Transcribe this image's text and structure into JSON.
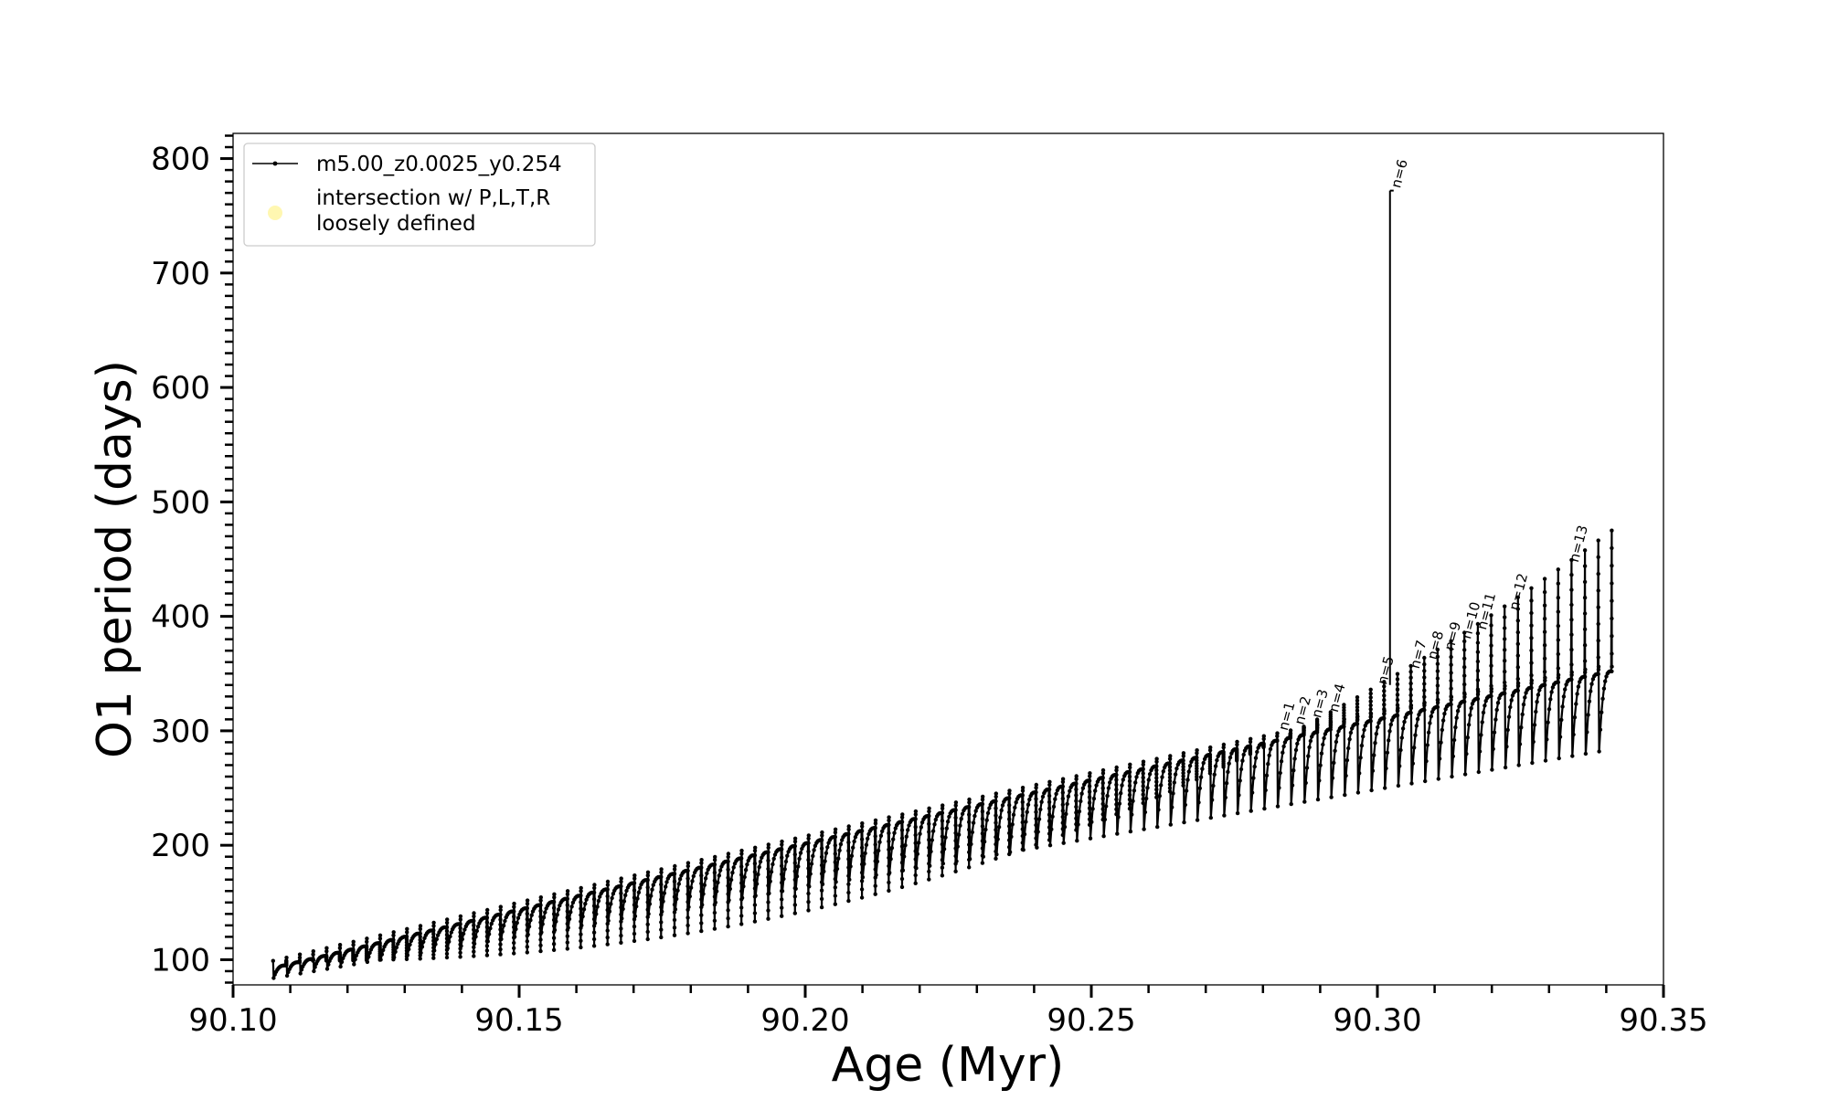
{
  "chart_data": {
    "type": "line",
    "title": "",
    "xlabel": "Age (Myr)",
    "ylabel": "O1 period (days)",
    "xlim": [
      90.1,
      90.35
    ],
    "ylim": [
      78,
      822
    ],
    "x_ticks": [
      90.1,
      90.15,
      90.2,
      90.25,
      90.3,
      90.35
    ],
    "x_tick_labels": [
      "90.10",
      "90.15",
      "90.20",
      "90.25",
      "90.30",
      "90.35"
    ],
    "y_ticks": [
      100,
      200,
      300,
      400,
      500,
      600,
      700,
      800
    ],
    "y_tick_labels": [
      "100",
      "200",
      "300",
      "400",
      "500",
      "600",
      "700",
      "800"
    ],
    "grid": false,
    "legend_position": "top-left",
    "legend": [
      {
        "label": "m5.00_z0.0025_y0.254",
        "marker": "line-with-dot",
        "color": "#000000"
      },
      {
        "label": "intersection w/ P,L,T,R\nloosely defined",
        "marker": "circle",
        "color": "#fff59d"
      }
    ],
    "series": [
      {
        "name": "m5.00_z0.0025_y0.254",
        "pattern": "thermal pulse oscillations",
        "x_start": 90.107,
        "x_end": 90.341,
        "pulse_count": 100,
        "baseline_start": 95,
        "baseline_end": 352,
        "dip_start": 84,
        "dip_end": 282,
        "spike_start": 99,
        "spike_end": 475
      }
    ],
    "annotations": [
      {
        "label": "n=1",
        "x": 90.2825,
        "y": 298
      },
      {
        "label": "n=2",
        "x": 90.2853,
        "y": 303
      },
      {
        "label": "n=3",
        "x": 90.2883,
        "y": 309
      },
      {
        "label": "n=4",
        "x": 90.2913,
        "y": 314
      },
      {
        "label": "n=5",
        "x": 90.2998,
        "y": 338
      },
      {
        "label": "n=6",
        "x": 90.3022,
        "y": 772
      },
      {
        "label": "n=7",
        "x": 90.3055,
        "y": 352
      },
      {
        "label": "n=8",
        "x": 90.3085,
        "y": 360
      },
      {
        "label": "n=9",
        "x": 90.3115,
        "y": 368
      },
      {
        "label": "n=10",
        "x": 90.3145,
        "y": 378
      },
      {
        "label": "n=11",
        "x": 90.3172,
        "y": 386
      },
      {
        "label": "n=12",
        "x": 90.3228,
        "y": 403
      },
      {
        "label": "n=13",
        "x": 90.3333,
        "y": 445
      }
    ]
  }
}
